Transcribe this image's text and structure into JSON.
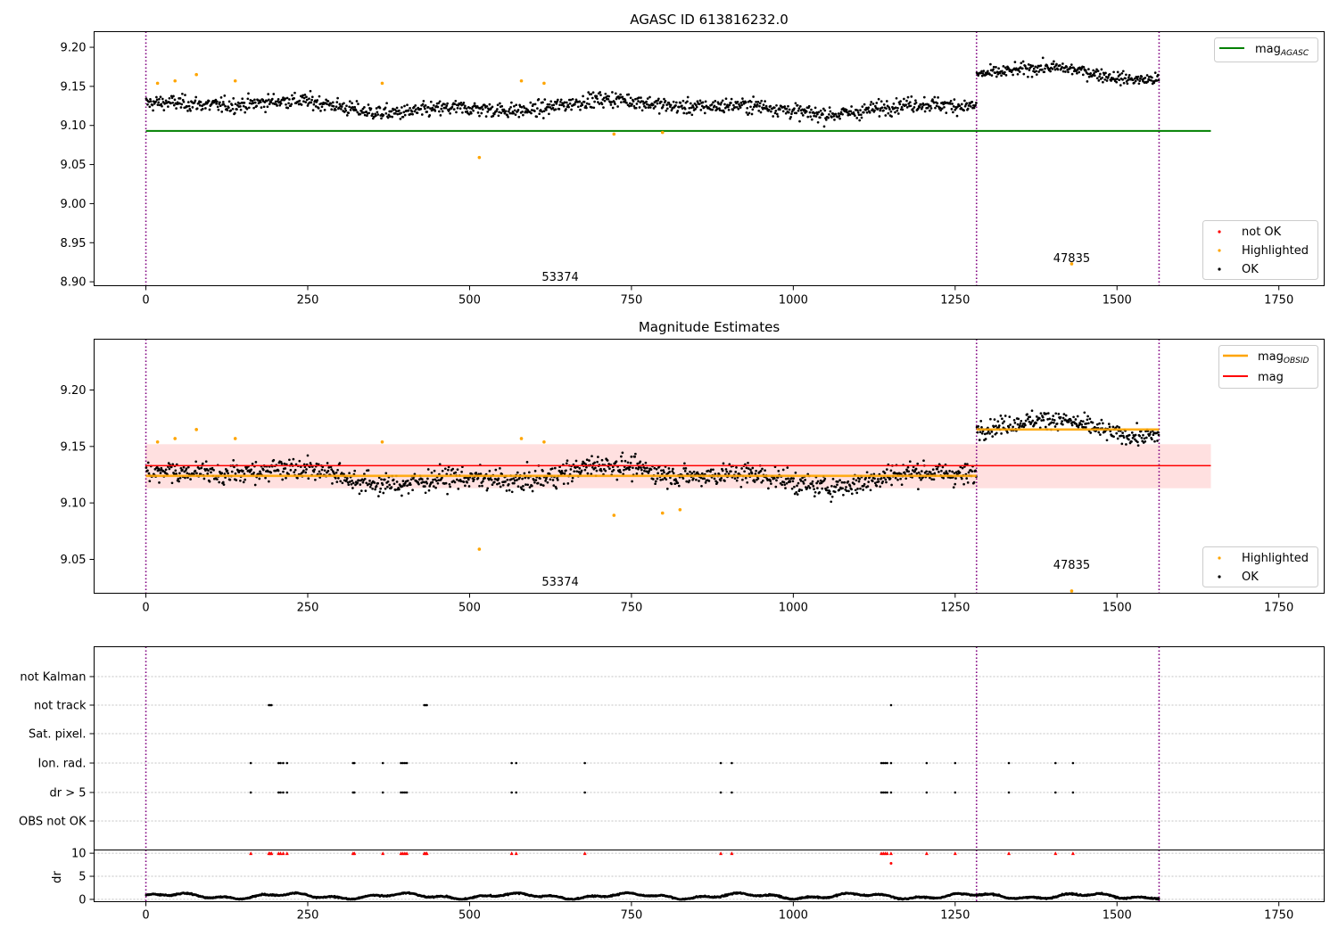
{
  "chart_data": [
    {
      "type": "scatter",
      "title": "AGASC ID 613816232.0",
      "xlim": [
        -80,
        1820
      ],
      "ylim": [
        8.895,
        9.22
      ],
      "x_ticks": [
        0,
        250,
        500,
        750,
        1000,
        1250,
        1500,
        1750
      ],
      "x_tick_labels": [
        "0",
        "250",
        "500",
        "750",
        "1000",
        "1250",
        "1500",
        "1750"
      ],
      "y_ticks": [
        8.9,
        8.95,
        9.0,
        9.05,
        9.1,
        9.15,
        9.2
      ],
      "y_tick_labels": [
        "8.90",
        "8.95",
        "9.00",
        "9.05",
        "9.10",
        "9.15",
        "9.20"
      ],
      "obs_boundaries": [
        0,
        1283,
        1565
      ],
      "lines": [
        {
          "name": "mag_AGASC",
          "y": 9.093,
          "x": [
            0,
            1645
          ],
          "color": "#008000"
        }
      ],
      "ok_segments": [
        {
          "x": [
            0,
            1283
          ],
          "level": 9.124,
          "scatter": 0.011
        },
        {
          "x": [
            1283,
            1565
          ],
          "level": 9.165,
          "scatter": 0.009
        }
      ],
      "highlighted": [
        [
          18,
          9.154
        ],
        [
          45,
          9.157
        ],
        [
          78,
          9.165
        ],
        [
          138,
          9.157
        ],
        [
          365,
          9.154
        ],
        [
          515,
          9.059
        ],
        [
          580,
          9.157
        ],
        [
          615,
          9.154
        ],
        [
          723,
          9.089
        ],
        [
          798,
          9.091
        ],
        [
          1430,
          8.923
        ]
      ],
      "annotations": [
        {
          "text": "53374",
          "x": 640,
          "y": 8.906
        },
        {
          "text": "47835",
          "x": 1430,
          "y": 8.93
        }
      ],
      "legend": {
        "upper": [
          {
            "label": "mag",
            "subscript": "AGASC",
            "kind": "line",
            "color": "#008000"
          }
        ],
        "lower": [
          {
            "label": "not OK",
            "kind": "marker",
            "color": "#ff0000"
          },
          {
            "label": "Highlighted",
            "kind": "marker",
            "color": "#ffa500"
          },
          {
            "label": "OK",
            "kind": "marker",
            "color": "#000000"
          }
        ]
      }
    },
    {
      "type": "scatter",
      "title": "Magnitude Estimates",
      "xlim": [
        -80,
        1820
      ],
      "ylim": [
        9.02,
        9.245
      ],
      "x_ticks": [
        0,
        250,
        500,
        750,
        1000,
        1250,
        1500,
        1750
      ],
      "x_tick_labels": [
        "0",
        "250",
        "500",
        "750",
        "1000",
        "1250",
        "1500",
        "1750"
      ],
      "y_ticks": [
        9.05,
        9.1,
        9.15,
        9.2
      ],
      "y_tick_labels": [
        "9.05",
        "9.10",
        "9.15",
        "9.20"
      ],
      "obs_boundaries": [
        0,
        1283,
        1565
      ],
      "band": {
        "x": [
          -1,
          1645
        ],
        "y": [
          9.113,
          9.152
        ],
        "color": "#ffe0e0"
      },
      "lines": [
        {
          "name": "mag",
          "y": 9.133,
          "x": [
            -1,
            1645
          ],
          "color": "#ff0000"
        },
        {
          "name": "mag_OBSID",
          "y": 9.124,
          "x": [
            0,
            1283
          ],
          "color": "#ffa500"
        },
        {
          "name": "mag_OBSID",
          "y": 9.165,
          "x": [
            1283,
            1565
          ],
          "color": "#ffa500"
        }
      ],
      "ok_segments": [
        {
          "x": [
            0,
            1283
          ],
          "level": 9.124,
          "scatter": 0.011
        },
        {
          "x": [
            1283,
            1565
          ],
          "level": 9.165,
          "scatter": 0.009
        }
      ],
      "highlighted": [
        [
          18,
          9.154
        ],
        [
          45,
          9.157
        ],
        [
          78,
          9.165
        ],
        [
          138,
          9.157
        ],
        [
          365,
          9.154
        ],
        [
          515,
          9.059
        ],
        [
          580,
          9.157
        ],
        [
          615,
          9.154
        ],
        [
          723,
          9.089
        ],
        [
          798,
          9.091
        ],
        [
          825,
          9.094
        ],
        [
          1430,
          9.022
        ]
      ],
      "annotations": [
        {
          "text": "53374",
          "x": 640,
          "y": 9.03
        },
        {
          "text": "47835",
          "x": 1430,
          "y": 9.045
        }
      ],
      "legend": {
        "upper": [
          {
            "label": "mag",
            "subscript": "OBSID",
            "kind": "line",
            "color": "#ffa500"
          },
          {
            "label": "mag",
            "kind": "line",
            "color": "#ff0000"
          }
        ],
        "lower": [
          {
            "label": "Highlighted",
            "kind": "marker",
            "color": "#ffa500"
          },
          {
            "label": "OK",
            "kind": "marker",
            "color": "#000000"
          }
        ]
      }
    },
    {
      "type": "scatter",
      "xlim": [
        -80,
        1820
      ],
      "x_ticks": [
        0,
        250,
        500,
        750,
        1000,
        1250,
        1500,
        1750
      ],
      "x_tick_labels": [
        "0",
        "250",
        "500",
        "750",
        "1000",
        "1250",
        "1500",
        "1750"
      ],
      "obs_boundaries": [
        0,
        1283,
        1565
      ],
      "flag_rows": [
        "not Kalman",
        "not track",
        "Sat. pixel.",
        "Ion. rad.",
        "dr > 5",
        "OBS not OK"
      ],
      "flag_points": {
        "not Kalman": [],
        "not track": [
          190,
          192,
          194,
          430,
          432,
          434,
          1151
        ],
        "Sat. pixel.": [],
        "Ion. rad.": [
          162,
          205,
          208,
          212,
          218,
          320,
          322,
          366,
          394,
          397,
          400,
          403,
          565,
          572,
          678,
          888,
          905,
          1136,
          1139,
          1142,
          1145,
          1151,
          1206,
          1250,
          1333,
          1405,
          1432
        ],
        "dr > 5": [
          162,
          205,
          208,
          212,
          218,
          320,
          322,
          366,
          394,
          397,
          400,
          403,
          565,
          572,
          678,
          888,
          905,
          1136,
          1139,
          1142,
          1145,
          1151,
          1206,
          1250,
          1333,
          1405,
          1432
        ],
        "OBS not OK": []
      },
      "dr": {
        "ylabel": "dr",
        "ylim": [
          -0.5,
          10.7
        ],
        "y_ticks": [
          0,
          5,
          10
        ],
        "y_tick_labels": [
          "0",
          "5",
          "10"
        ],
        "clipped_at": 10,
        "clipped_x": [
          162,
          190,
          192,
          194,
          205,
          208,
          212,
          218,
          320,
          322,
          366,
          394,
          397,
          400,
          403,
          430,
          432,
          434,
          565,
          572,
          678,
          888,
          905,
          1136,
          1139,
          1142,
          1145,
          1151,
          1206,
          1250,
          1333,
          1405,
          1432
        ],
        "extra_points": [
          [
            1151,
            7.8
          ]
        ],
        "baseline_level": 0.7
      }
    }
  ]
}
